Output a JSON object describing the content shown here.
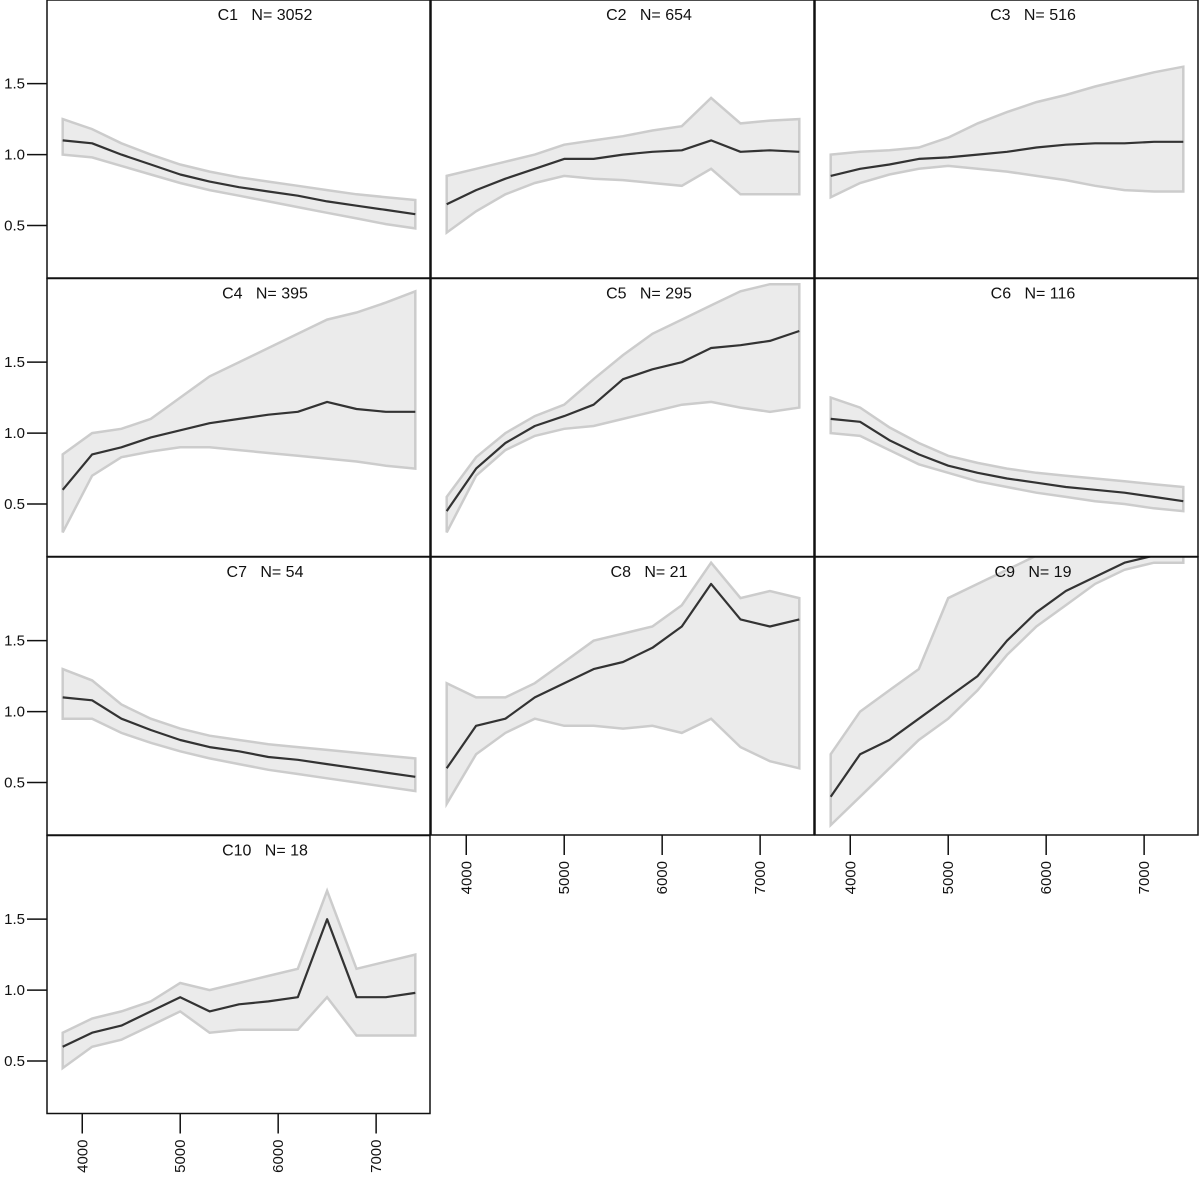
{
  "chart_data": [
    {
      "type": "line",
      "title": "C1   N= 3052",
      "x": [
        3800,
        4100,
        4400,
        4700,
        5000,
        5300,
        5600,
        5900,
        6200,
        6500,
        6800,
        7100,
        7400
      ],
      "values": [
        1.1,
        1.08,
        1.0,
        0.93,
        0.86,
        0.81,
        0.77,
        0.74,
        0.71,
        0.67,
        0.64,
        0.61,
        0.58
      ],
      "band_low": [
        1.0,
        0.98,
        0.92,
        0.86,
        0.8,
        0.75,
        0.71,
        0.67,
        0.63,
        0.59,
        0.55,
        0.51,
        0.48
      ],
      "band_high": [
        1.25,
        1.18,
        1.08,
        1.0,
        0.93,
        0.88,
        0.84,
        0.81,
        0.78,
        0.75,
        0.72,
        0.7,
        0.68
      ],
      "color": "#333333",
      "band_color": "#ebebeb",
      "band_edge_color": "#cccccc",
      "xlim": [
        3640,
        7550
      ],
      "ylim": [
        0.13,
        2.09
      ],
      "yticks": [
        0.5,
        {
          "value": 1,
          "label": "1.0"
        },
        1.5
      ]
    },
    {
      "type": "line",
      "title": "C2   N= 654",
      "x": [
        3800,
        4100,
        4400,
        4700,
        5000,
        5300,
        5600,
        5900,
        6200,
        6500,
        6800,
        7100,
        7400
      ],
      "values": [
        0.65,
        0.75,
        0.83,
        0.9,
        0.97,
        0.97,
        1.0,
        1.02,
        1.03,
        1.1,
        1.02,
        1.03,
        1.02
      ],
      "band_low": [
        0.45,
        0.6,
        0.72,
        0.8,
        0.85,
        0.83,
        0.82,
        0.8,
        0.78,
        0.9,
        0.72,
        0.72,
        0.72
      ],
      "band_high": [
        0.85,
        0.9,
        0.95,
        1.0,
        1.07,
        1.1,
        1.13,
        1.17,
        1.2,
        1.4,
        1.22,
        1.24,
        1.25
      ],
      "color": "#333333",
      "band_color": "#ebebeb",
      "band_edge_color": "#cccccc",
      "xlim": [
        3640,
        7550
      ],
      "ylim": [
        0.13,
        2.09
      ]
    },
    {
      "type": "line",
      "title": "C3   N= 516",
      "x": [
        3800,
        4100,
        4400,
        4700,
        5000,
        5300,
        5600,
        5900,
        6200,
        6500,
        6800,
        7100,
        7400
      ],
      "values": [
        0.85,
        0.9,
        0.93,
        0.97,
        0.98,
        1.0,
        1.02,
        1.05,
        1.07,
        1.08,
        1.08,
        1.09,
        1.09
      ],
      "band_low": [
        0.7,
        0.8,
        0.86,
        0.9,
        0.92,
        0.9,
        0.88,
        0.85,
        0.82,
        0.78,
        0.75,
        0.74,
        0.74
      ],
      "band_high": [
        1.0,
        1.02,
        1.03,
        1.05,
        1.12,
        1.22,
        1.3,
        1.37,
        1.42,
        1.48,
        1.53,
        1.58,
        1.62
      ],
      "color": "#333333",
      "band_color": "#ebebeb",
      "band_edge_color": "#cccccc",
      "xlim": [
        3640,
        7550
      ],
      "ylim": [
        0.13,
        2.09
      ]
    },
    {
      "type": "line",
      "title": "C4   N= 395",
      "x": [
        3800,
        4100,
        4400,
        4700,
        5000,
        5300,
        5600,
        5900,
        6200,
        6500,
        6800,
        7100,
        7400
      ],
      "values": [
        0.6,
        0.85,
        0.9,
        0.97,
        1.02,
        1.07,
        1.1,
        1.13,
        1.15,
        1.22,
        1.17,
        1.15,
        1.15
      ],
      "band_low": [
        0.3,
        0.7,
        0.83,
        0.87,
        0.9,
        0.9,
        0.88,
        0.86,
        0.84,
        0.82,
        0.8,
        0.77,
        0.75
      ],
      "band_high": [
        0.85,
        1.0,
        1.03,
        1.1,
        1.25,
        1.4,
        1.5,
        1.6,
        1.7,
        1.8,
        1.85,
        1.92,
        2.0
      ],
      "color": "#333333",
      "band_color": "#ebebeb",
      "band_edge_color": "#cccccc",
      "xlim": [
        3640,
        7550
      ],
      "ylim": [
        0.13,
        2.09
      ],
      "yticks": [
        0.5,
        {
          "value": 1,
          "label": "1.0"
        },
        1.5
      ]
    },
    {
      "type": "line",
      "title": "C5   N= 295",
      "x": [
        3800,
        4100,
        4400,
        4700,
        5000,
        5300,
        5600,
        5900,
        6200,
        6500,
        6800,
        7100,
        7400
      ],
      "values": [
        0.45,
        0.75,
        0.93,
        1.05,
        1.12,
        1.2,
        1.38,
        1.45,
        1.5,
        1.6,
        1.62,
        1.65,
        1.72
      ],
      "band_low": [
        0.3,
        0.7,
        0.88,
        0.98,
        1.03,
        1.05,
        1.1,
        1.15,
        1.2,
        1.22,
        1.18,
        1.15,
        1.18
      ],
      "band_high": [
        0.55,
        0.83,
        1.0,
        1.12,
        1.2,
        1.38,
        1.55,
        1.7,
        1.8,
        1.9,
        2.0,
        2.05,
        2.05
      ],
      "color": "#333333",
      "band_color": "#ebebeb",
      "band_edge_color": "#cccccc",
      "xlim": [
        3640,
        7550
      ],
      "ylim": [
        0.13,
        2.09
      ]
    },
    {
      "type": "line",
      "title": "C6   N= 116",
      "x": [
        3800,
        4100,
        4400,
        4700,
        5000,
        5300,
        5600,
        5900,
        6200,
        6500,
        6800,
        7100,
        7400
      ],
      "values": [
        1.1,
        1.08,
        0.95,
        0.85,
        0.77,
        0.72,
        0.68,
        0.65,
        0.62,
        0.6,
        0.58,
        0.55,
        0.52
      ],
      "band_low": [
        1.0,
        0.98,
        0.88,
        0.78,
        0.72,
        0.66,
        0.62,
        0.58,
        0.55,
        0.52,
        0.5,
        0.47,
        0.45
      ],
      "band_high": [
        1.25,
        1.18,
        1.04,
        0.93,
        0.84,
        0.79,
        0.75,
        0.72,
        0.7,
        0.68,
        0.66,
        0.64,
        0.62
      ],
      "color": "#333333",
      "band_color": "#ebebeb",
      "band_edge_color": "#cccccc",
      "xlim": [
        3640,
        7550
      ],
      "ylim": [
        0.13,
        2.09
      ]
    },
    {
      "type": "line",
      "title": "C7   N= 54",
      "x": [
        3800,
        4100,
        4400,
        4700,
        5000,
        5300,
        5600,
        5900,
        6200,
        6500,
        6800,
        7100,
        7400
      ],
      "values": [
        1.1,
        1.08,
        0.95,
        0.87,
        0.8,
        0.75,
        0.72,
        0.68,
        0.66,
        0.63,
        0.6,
        0.57,
        0.54
      ],
      "band_low": [
        0.95,
        0.95,
        0.85,
        0.78,
        0.72,
        0.67,
        0.63,
        0.59,
        0.56,
        0.53,
        0.5,
        0.47,
        0.44
      ],
      "band_high": [
        1.3,
        1.22,
        1.05,
        0.95,
        0.88,
        0.83,
        0.8,
        0.77,
        0.75,
        0.73,
        0.71,
        0.69,
        0.67
      ],
      "color": "#333333",
      "band_color": "#ebebeb",
      "band_edge_color": "#cccccc",
      "xlim": [
        3640,
        7550
      ],
      "ylim": [
        0.13,
        2.09
      ],
      "yticks": [
        0.5,
        {
          "value": 1,
          "label": "1.0"
        },
        1.5
      ]
    },
    {
      "type": "line",
      "title": "C8   N= 21",
      "x": [
        3800,
        4100,
        4400,
        4700,
        5000,
        5300,
        5600,
        5900,
        6200,
        6500,
        6800,
        7100,
        7400
      ],
      "values": [
        0.6,
        0.9,
        0.95,
        1.1,
        1.2,
        1.3,
        1.35,
        1.45,
        1.6,
        1.9,
        1.65,
        1.6,
        1.65
      ],
      "band_low": [
        0.35,
        0.7,
        0.85,
        0.95,
        0.9,
        0.9,
        0.88,
        0.9,
        0.85,
        0.95,
        0.75,
        0.65,
        0.6
      ],
      "band_high": [
        1.2,
        1.1,
        1.1,
        1.2,
        1.35,
        1.5,
        1.55,
        1.6,
        1.75,
        2.05,
        1.8,
        1.85,
        1.8
      ],
      "color": "#333333",
      "band_color": "#ebebeb",
      "band_edge_color": "#cccccc",
      "xlim": [
        3640,
        7550
      ],
      "ylim": [
        0.13,
        2.09
      ],
      "xticks": [
        4000,
        5000,
        6000,
        7000
      ]
    },
    {
      "type": "line",
      "title": "C9   N= 19",
      "x": [
        3800,
        4100,
        4400,
        4700,
        5000,
        5300,
        5600,
        5900,
        6200,
        6500,
        6800,
        7100,
        7400
      ],
      "values": [
        0.4,
        0.7,
        0.8,
        0.95,
        1.1,
        1.25,
        1.5,
        1.7,
        1.85,
        1.95,
        2.05,
        2.1,
        2.1
      ],
      "band_low": [
        0.2,
        0.4,
        0.6,
        0.8,
        0.95,
        1.15,
        1.4,
        1.6,
        1.75,
        1.9,
        2.0,
        2.05,
        2.05
      ],
      "band_high": [
        0.7,
        1.0,
        1.15,
        1.3,
        1.8,
        1.9,
        2.0,
        2.1,
        2.1,
        2.1,
        2.1,
        2.1,
        2.1
      ],
      "color": "#333333",
      "band_color": "#ebebeb",
      "band_edge_color": "#cccccc",
      "xlim": [
        3640,
        7550
      ],
      "ylim": [
        0.13,
        2.09
      ],
      "xticks": [
        4000,
        5000,
        6000,
        7000
      ]
    },
    {
      "type": "line",
      "title": "C10   N= 18",
      "x": [
        3800,
        4100,
        4400,
        4700,
        5000,
        5300,
        5600,
        5900,
        6200,
        6500,
        6800,
        7100,
        7400
      ],
      "values": [
        0.6,
        0.7,
        0.75,
        0.85,
        0.95,
        0.85,
        0.9,
        0.92,
        0.95,
        1.5,
        0.95,
        0.95,
        0.98
      ],
      "band_low": [
        0.45,
        0.6,
        0.65,
        0.75,
        0.85,
        0.7,
        0.72,
        0.72,
        0.72,
        0.95,
        0.68,
        0.68,
        0.68
      ],
      "band_high": [
        0.7,
        0.8,
        0.85,
        0.92,
        1.05,
        1.0,
        1.05,
        1.1,
        1.15,
        1.7,
        1.15,
        1.2,
        1.25
      ],
      "color": "#333333",
      "band_color": "#ebebeb",
      "band_edge_color": "#cccccc",
      "xlim": [
        3640,
        7550
      ],
      "ylim": [
        0.13,
        2.09
      ],
      "yticks": [
        0.5,
        {
          "value": 1,
          "label": "1.0"
        },
        1.5
      ],
      "xticks": [
        4000,
        5000,
        6000,
        7000
      ]
    }
  ]
}
